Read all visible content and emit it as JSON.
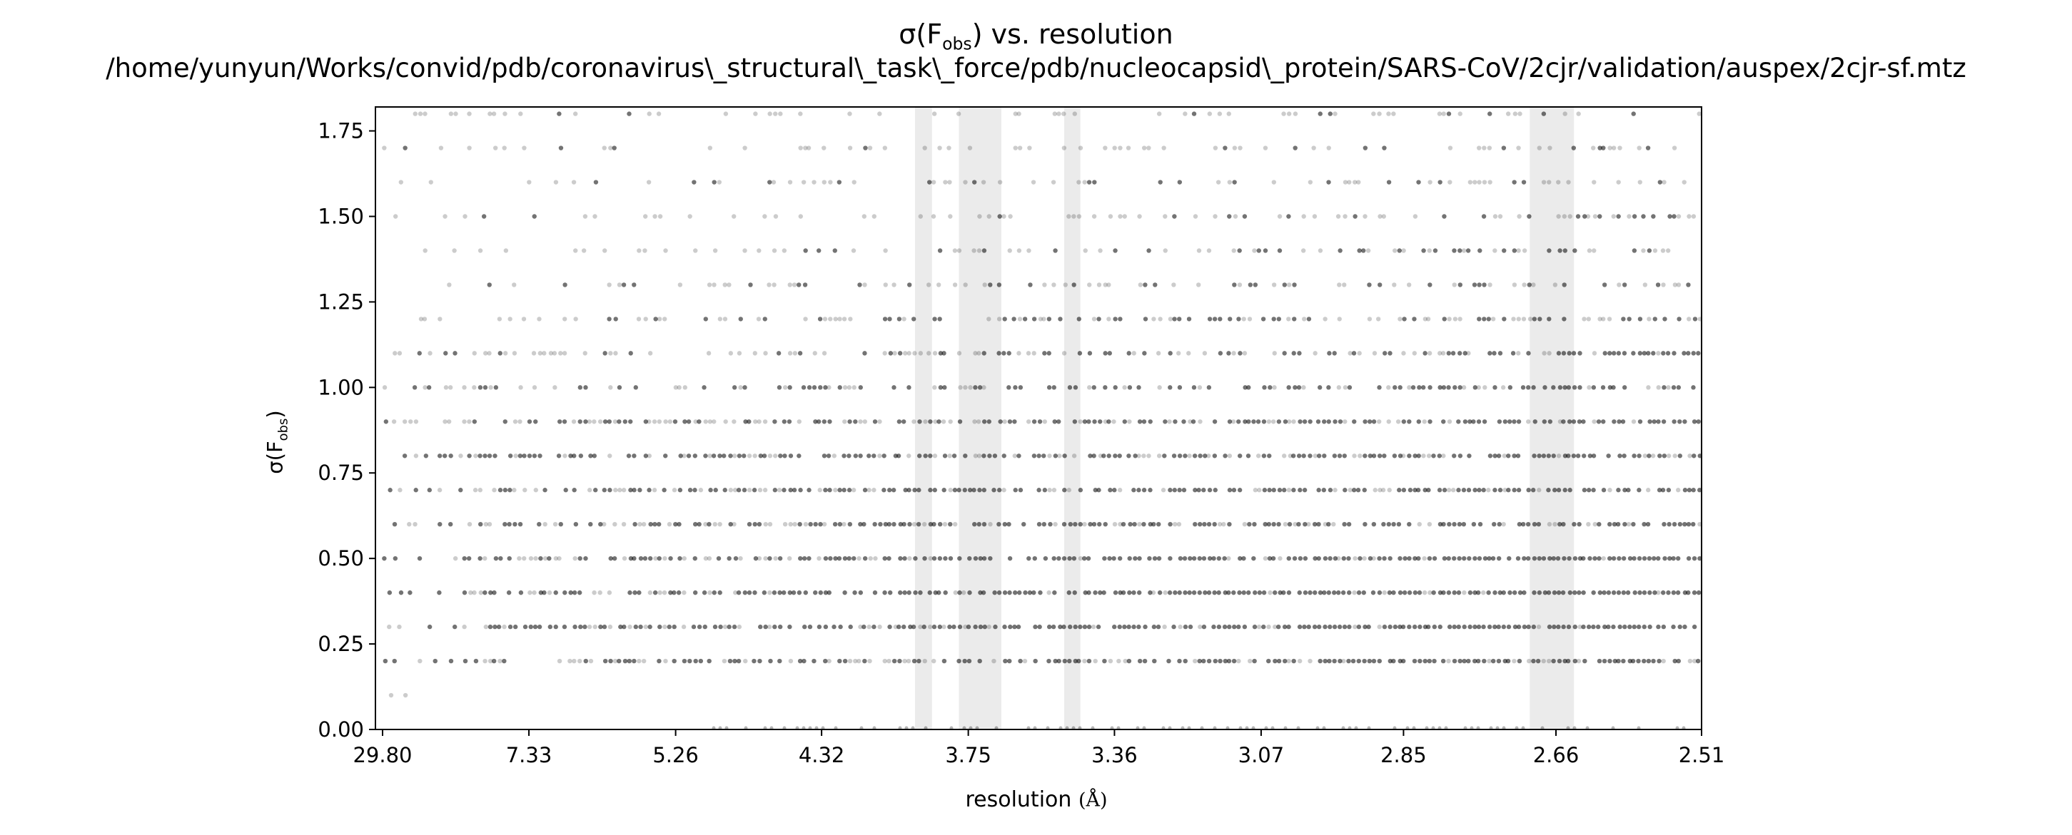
{
  "chart_data": {
    "type": "scatter",
    "title": "σ(F_obs) vs. resolution",
    "title_main_prefix": "σ(F",
    "title_main_sub": "obs",
    "title_main_suffix": ") vs. resolution",
    "subtitle": "/home/yunyun/Works/convid/pdb/coronavirus\\_structural\\_task\\_force/pdb/nucleocapsid\\_protein/SARS-CoV/2cjr/validation/auspex/2cjr-sf.mtz",
    "xlabel": "resolution (Å)",
    "xlabel_text": "resolution",
    "xlabel_unit": "(Å)",
    "ylabel": "σ(F_obs)",
    "ylabel_prefix": "σ(F",
    "ylabel_sub": "obs",
    "ylabel_suffix": ")",
    "x_axis_scale": "1/d^2",
    "x_tick_labels": [
      "29.80",
      "7.33",
      "5.26",
      "4.32",
      "3.75",
      "3.36",
      "3.07",
      "2.85",
      "2.66",
      "2.51"
    ],
    "x_ticks_resolution": [
      29.8,
      7.33,
      5.26,
      4.32,
      3.75,
      3.36,
      3.07,
      2.85,
      2.66,
      2.51
    ],
    "xlim_resolution": [
      29.8,
      2.51
    ],
    "ylim": [
      0,
      1.82
    ],
    "y_ticks": [
      0.0,
      0.25,
      0.5,
      0.75,
      1.0,
      1.25,
      1.5,
      1.75
    ],
    "y_tick_labels": [
      "0.00",
      "0.25",
      "0.50",
      "0.75",
      "1.00",
      "1.25",
      "1.50",
      "1.75"
    ],
    "grid": false,
    "legend": "none",
    "ice_ring_bands_resolution": [
      [
        3.93,
        3.87
      ],
      [
        3.78,
        3.65
      ],
      [
        3.48,
        3.44
      ],
      [
        2.69,
        2.64
      ]
    ],
    "series": [
      {
        "y_levels": [
          0.1,
          0.2,
          0.3,
          0.4,
          0.5,
          0.6,
          0.7,
          0.8,
          0.9,
          1.0,
          1.1,
          1.2,
          1.3,
          1.4,
          1.5,
          1.6,
          1.7,
          1.8
        ],
        "level_density": [
          0.2,
          0.85,
          0.95,
          0.97,
          0.97,
          0.85,
          0.85,
          0.85,
          0.8,
          0.75,
          0.65,
          0.55,
          0.5,
          0.45,
          0.4,
          0.35,
          0.3,
          0.3
        ],
        "point_color": "#000000",
        "point_alpha": 0.2
      }
    ],
    "colors": {
      "ice_band": "#ebebeb",
      "axes": "#000000",
      "points": "#000000"
    }
  }
}
